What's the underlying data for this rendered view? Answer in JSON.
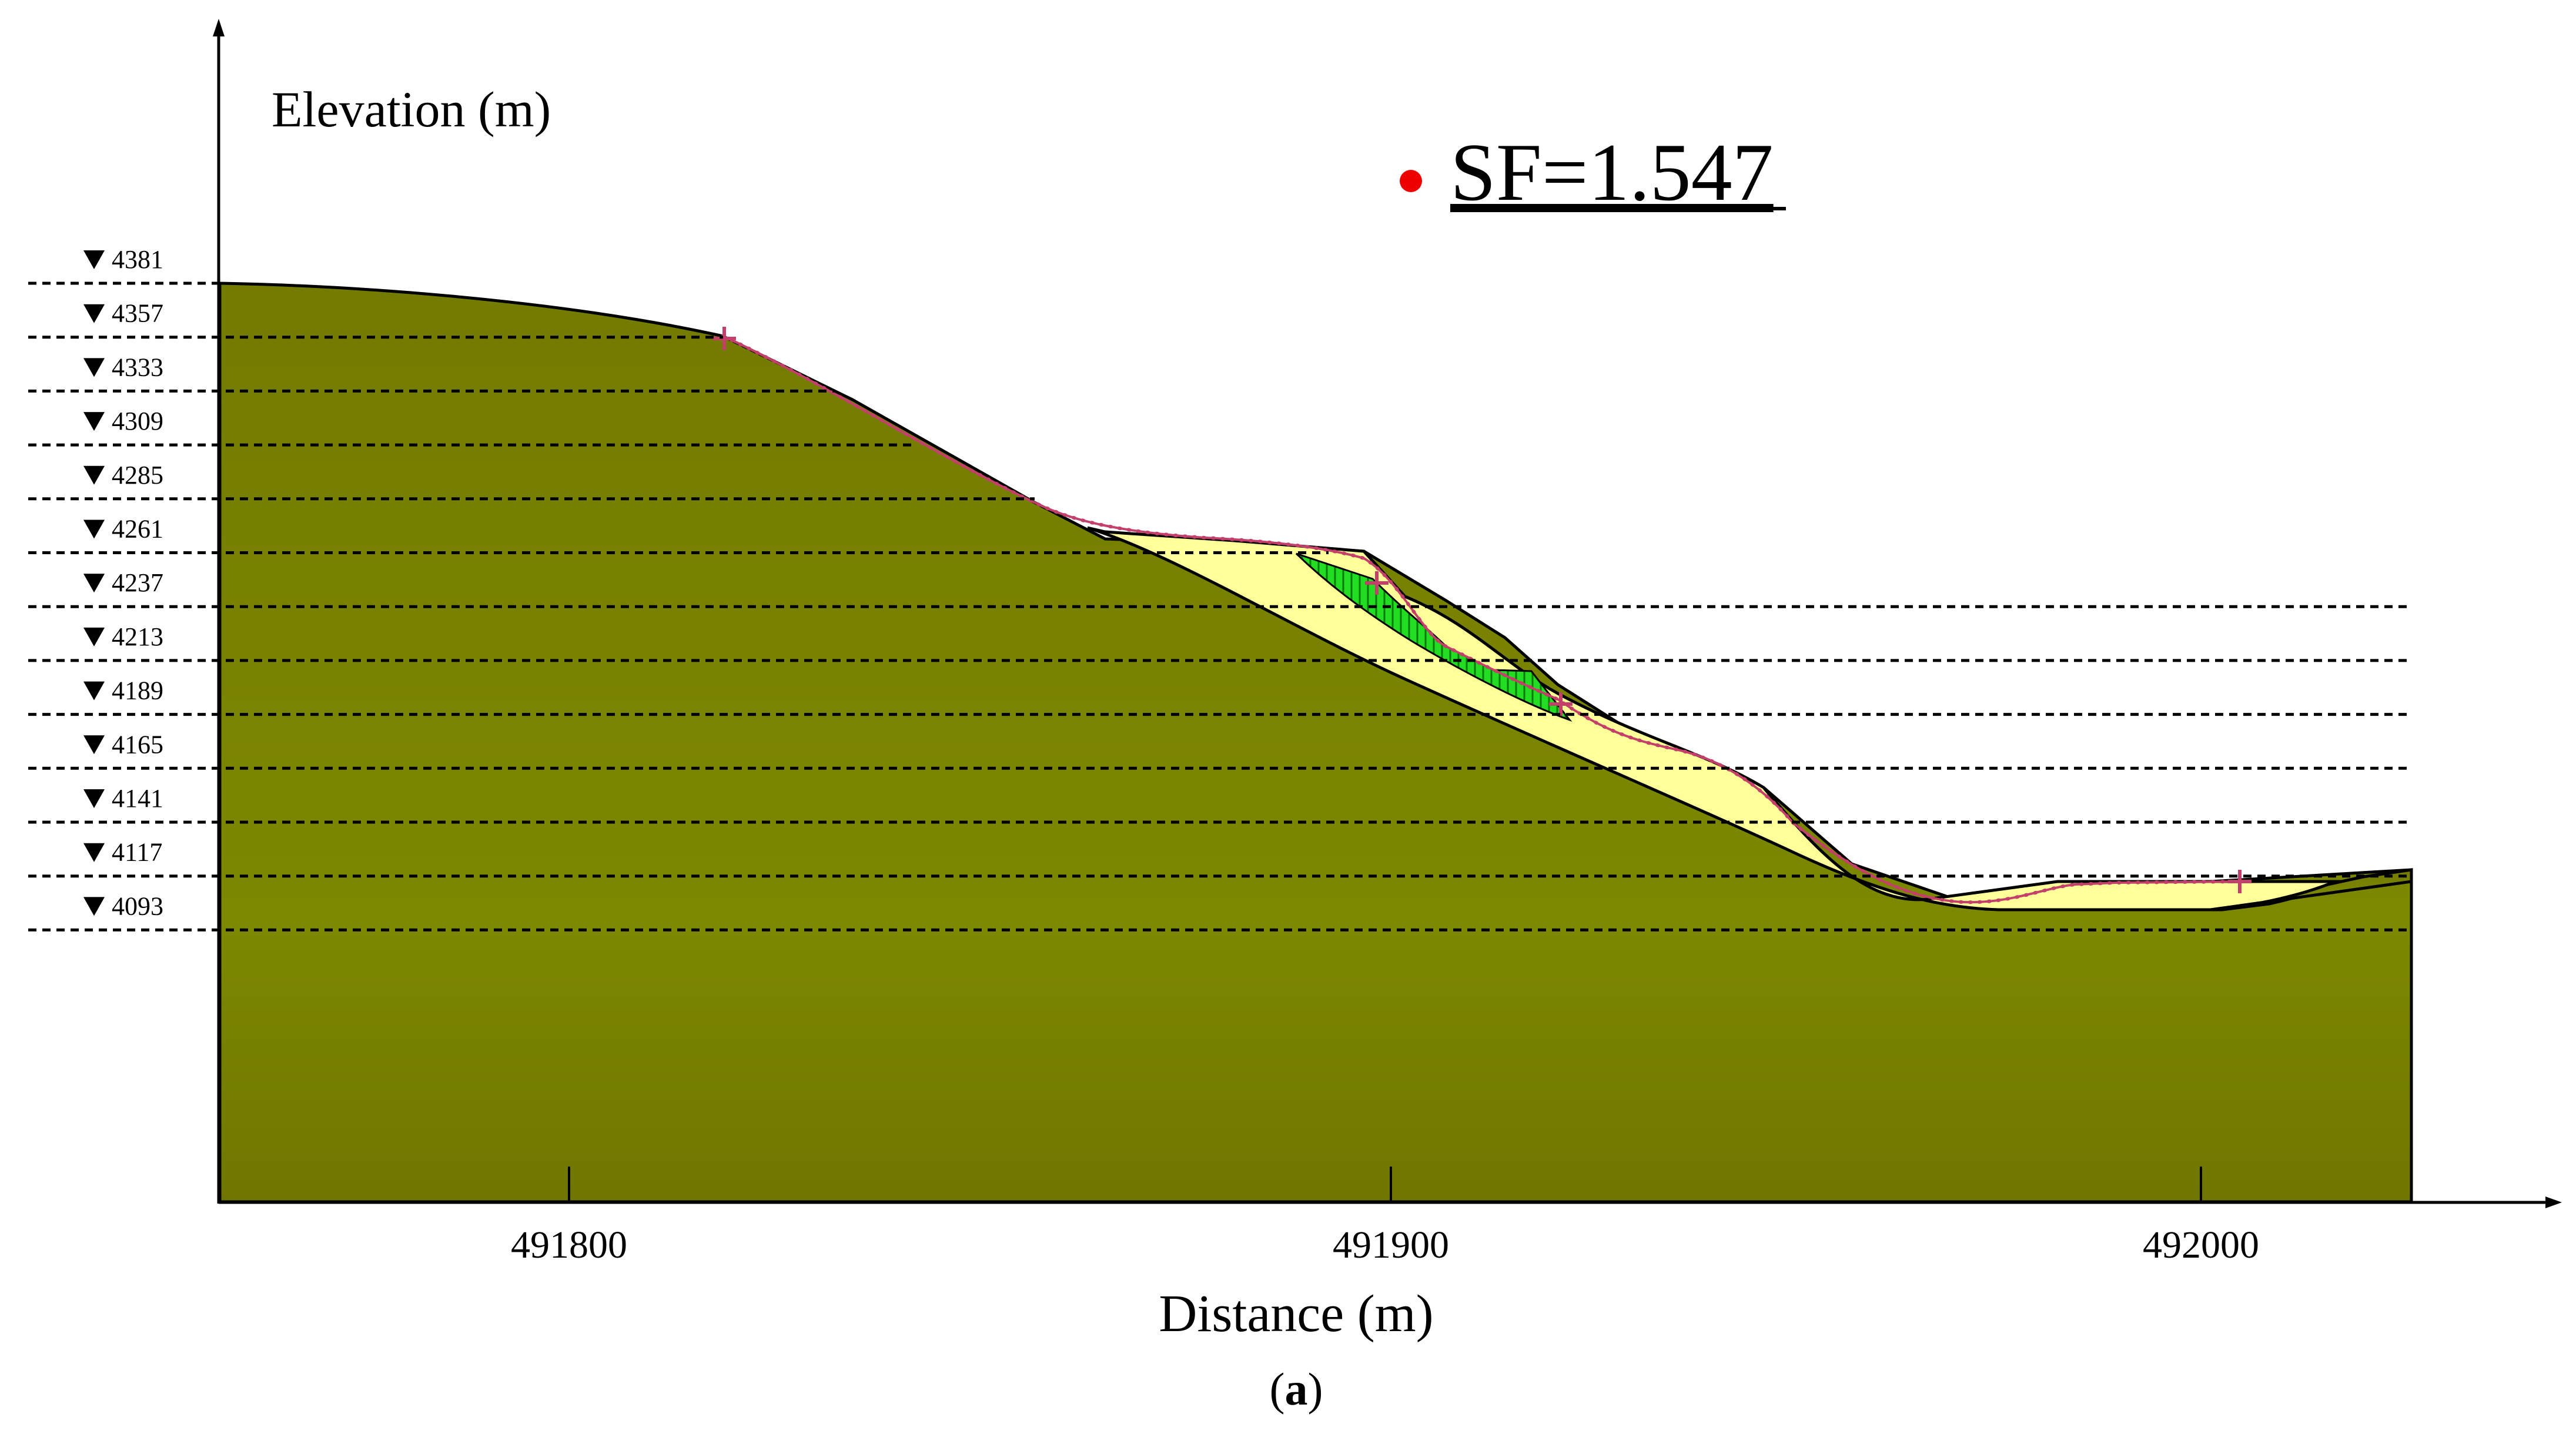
{
  "figure": {
    "ylabel": "Elevation (m)",
    "xlabel": "Distance (m)",
    "caption_open": "(",
    "caption_letter": "a",
    "caption_close": ")",
    "sf_label": "SF=1.547",
    "x_ticks": [
      "491800",
      "491900",
      "492000"
    ],
    "elevation_marks": [
      "4381",
      "4357",
      "4333",
      "4309",
      "4285",
      "4261",
      "4237",
      "4213",
      "4189",
      "4165",
      "4141",
      "4117",
      "4093"
    ]
  },
  "colors": {
    "ground": "#7c8800",
    "ground_dark": "#737b00",
    "slide_mass": "#ffff9a",
    "local_slide": "#22dd22",
    "slip_surface": "#c2406a",
    "sf_dot": "#ee0000",
    "outline": "#000000"
  }
}
